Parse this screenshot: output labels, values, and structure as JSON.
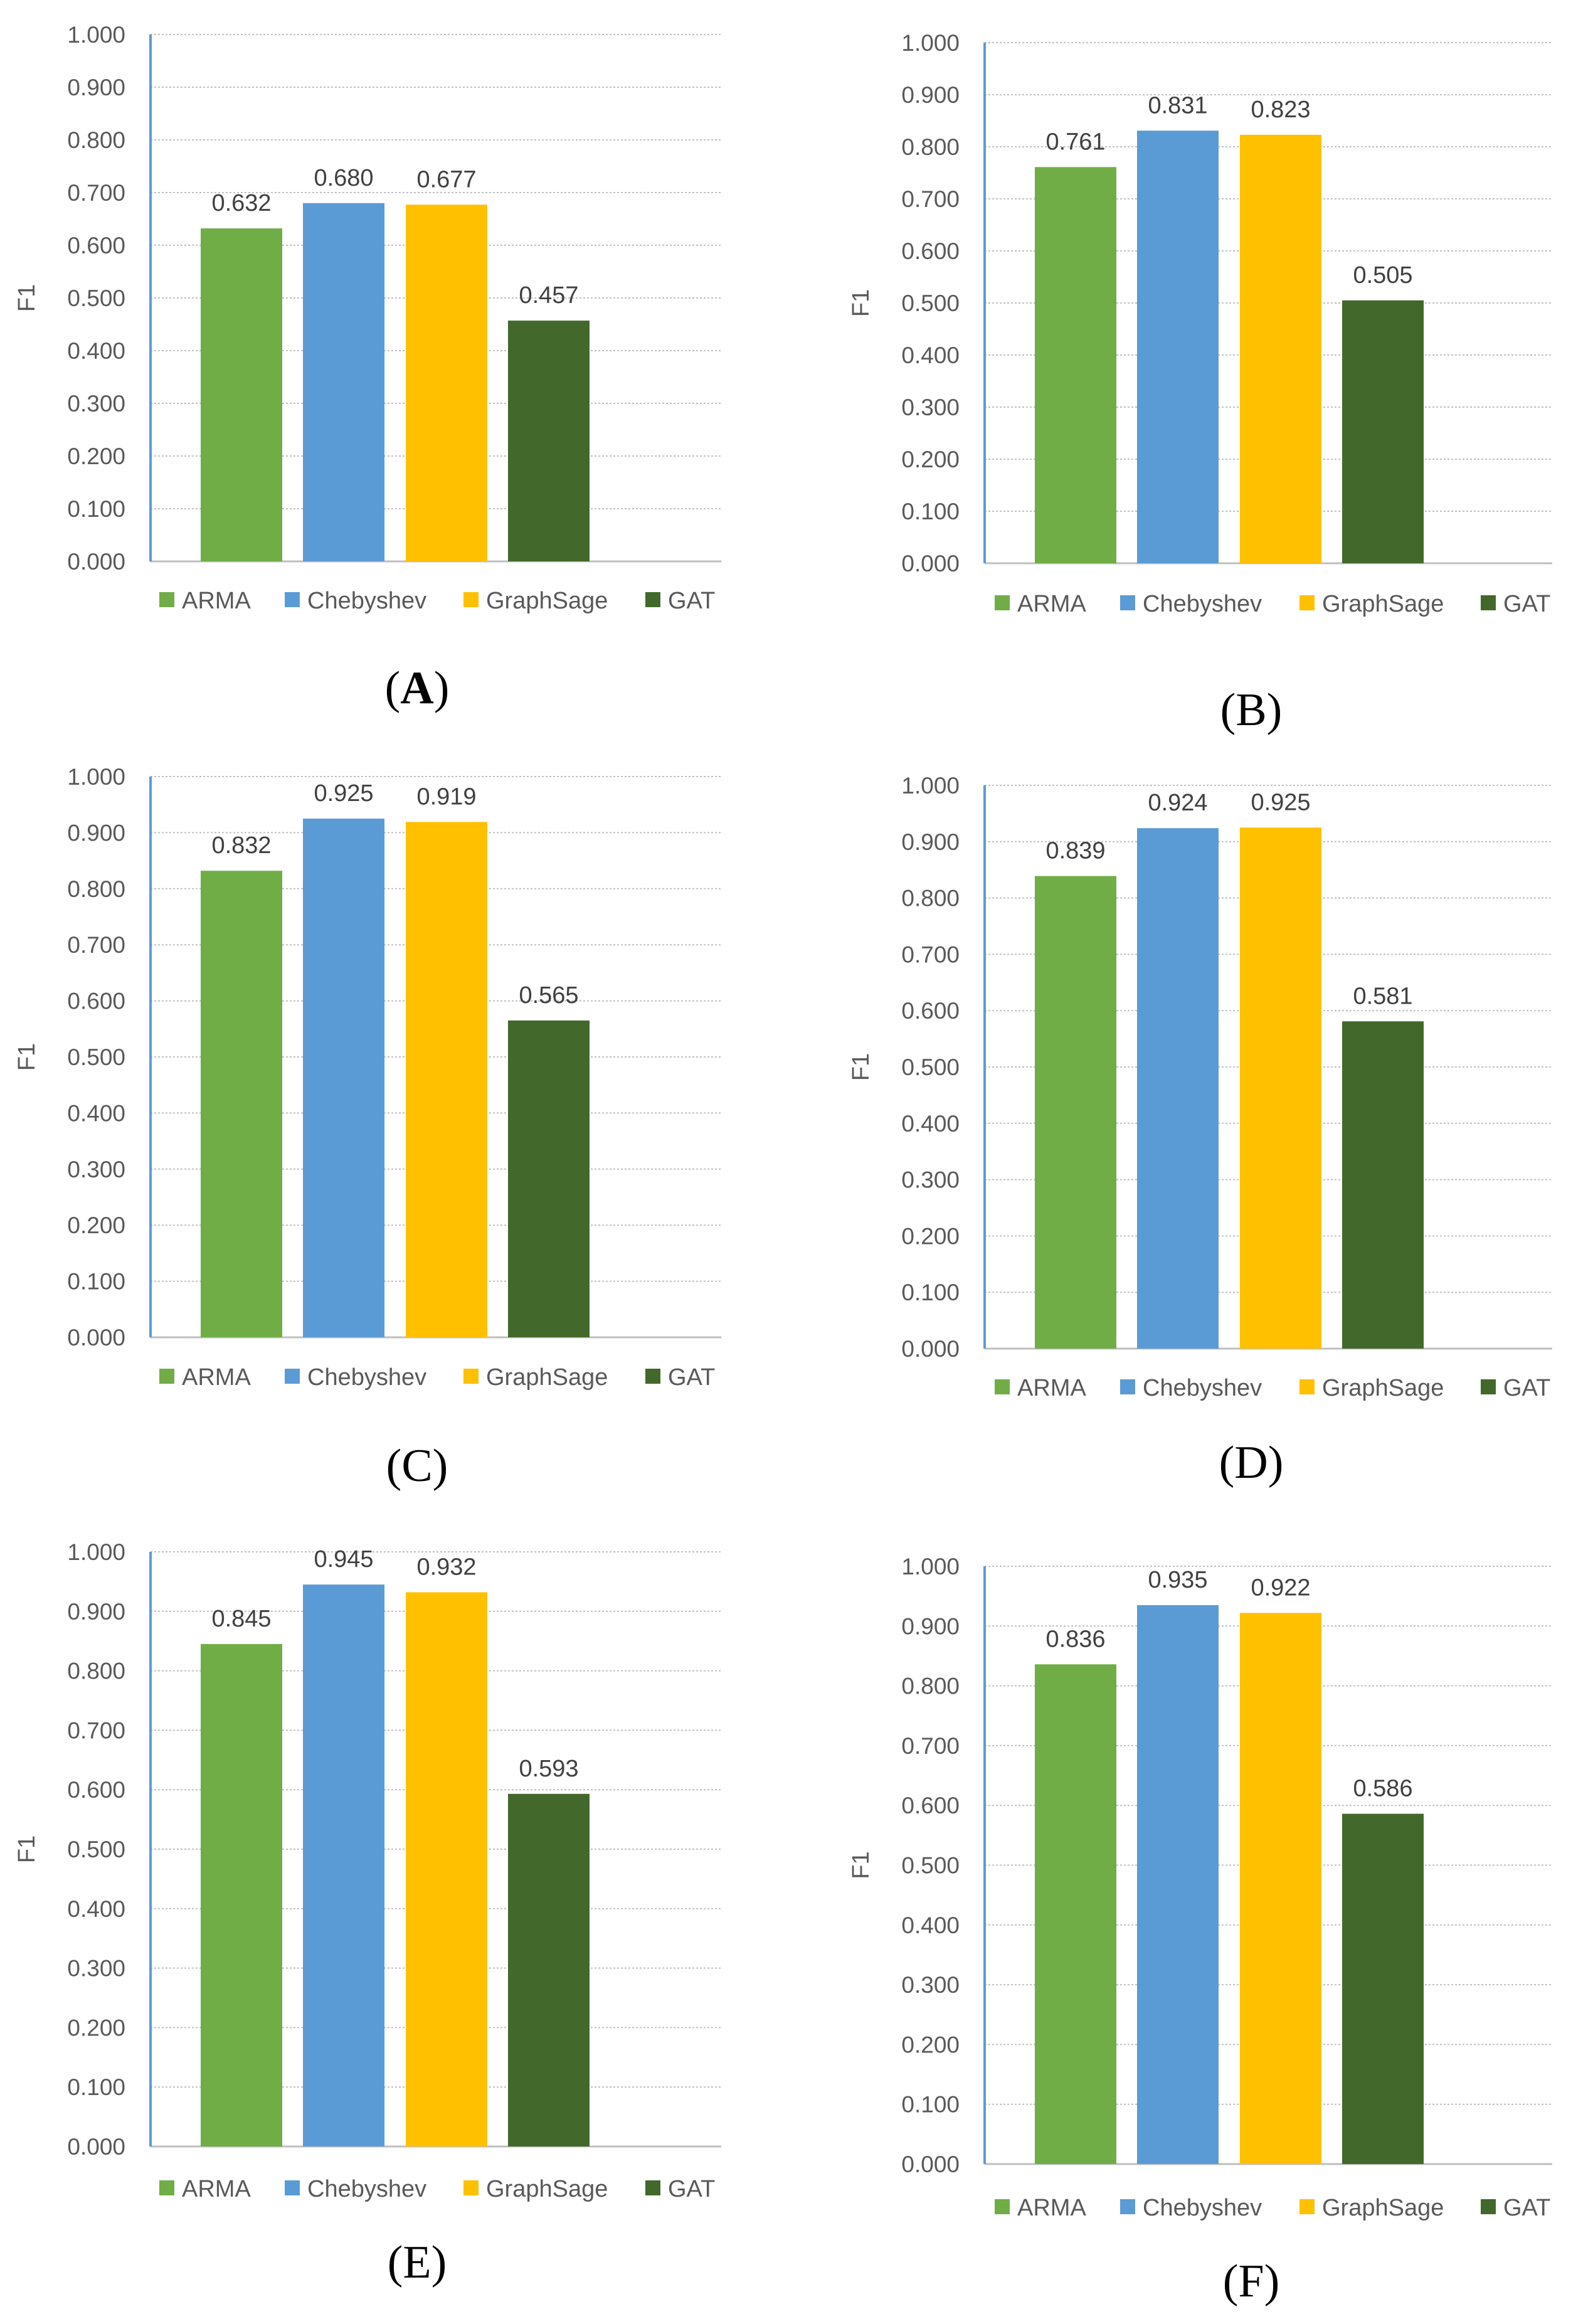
{
  "colors": {
    "ARMA": "#70ad47",
    "Chebyshev": "#5b9bd5",
    "GraphSage": "#ffc000",
    "GAT": "#43682b",
    "grid": "#c0c0c0",
    "axis": "#5b9bd5"
  },
  "chart_data": [
    {
      "panel": "A",
      "type": "bar",
      "ylabel": "F1",
      "ylim": [
        0,
        1
      ],
      "yticks": [
        "0.000",
        "0.100",
        "0.200",
        "0.300",
        "0.400",
        "0.500",
        "0.600",
        "0.700",
        "0.800",
        "0.900",
        "1.000"
      ],
      "categories": [
        "ARMA",
        "Chebyshev",
        "GraphSage",
        "GAT"
      ],
      "values": [
        0.632,
        0.68,
        0.677,
        0.457
      ],
      "labels": [
        "0.632",
        "0.680",
        "0.677",
        "0.457"
      ],
      "legend": "bottom"
    },
    {
      "panel": "B",
      "type": "bar",
      "ylabel": "F1",
      "ylim": [
        0,
        1
      ],
      "yticks": [
        "0.000",
        "0.100",
        "0.200",
        "0.300",
        "0.400",
        "0.500",
        "0.600",
        "0.700",
        "0.800",
        "0.900",
        "1.000"
      ],
      "categories": [
        "ARMA",
        "Chebyshev",
        "GraphSage",
        "GAT"
      ],
      "values": [
        0.761,
        0.831,
        0.823,
        0.505
      ],
      "labels": [
        "0.761",
        "0.831",
        "0.823",
        "0.505"
      ],
      "legend": "bottom"
    },
    {
      "panel": "C",
      "type": "bar",
      "ylabel": "F1",
      "ylim": [
        0,
        1
      ],
      "yticks": [
        "0.000",
        "0.100",
        "0.200",
        "0.300",
        "0.400",
        "0.500",
        "0.600",
        "0.700",
        "0.800",
        "0.900",
        "1.000"
      ],
      "categories": [
        "ARMA",
        "Chebyshev",
        "GraphSage",
        "GAT"
      ],
      "values": [
        0.832,
        0.925,
        0.919,
        0.565
      ],
      "labels": [
        "0.832",
        "0.925",
        "0.919",
        "0.565"
      ],
      "legend": "bottom"
    },
    {
      "panel": "D",
      "type": "bar",
      "ylabel": "F1",
      "ylim": [
        0,
        1
      ],
      "yticks": [
        "0.000",
        "0.100",
        "0.200",
        "0.300",
        "0.400",
        "0.500",
        "0.600",
        "0.700",
        "0.800",
        "0.900",
        "1.000"
      ],
      "categories": [
        "ARMA",
        "Chebyshev",
        "GraphSage",
        "GAT"
      ],
      "values": [
        0.839,
        0.924,
        0.925,
        0.581
      ],
      "labels": [
        "0.839",
        "0.924",
        "0.925",
        "0.581"
      ],
      "legend": "bottom"
    },
    {
      "panel": "E",
      "type": "bar",
      "ylabel": "F1",
      "ylim": [
        0,
        1
      ],
      "yticks": [
        "0.000",
        "0.100",
        "0.200",
        "0.300",
        "0.400",
        "0.500",
        "0.600",
        "0.700",
        "0.800",
        "0.900",
        "1.000"
      ],
      "categories": [
        "ARMA",
        "Chebyshev",
        "GraphSage",
        "GAT"
      ],
      "values": [
        0.845,
        0.945,
        0.932,
        0.593
      ],
      "labels": [
        "0.845",
        "0.945",
        "0.932",
        "0.593"
      ],
      "legend": "bottom"
    },
    {
      "panel": "F",
      "type": "bar",
      "ylabel": "F1",
      "ylim": [
        0,
        1
      ],
      "yticks": [
        "0.000",
        "0.100",
        "0.200",
        "0.300",
        "0.400",
        "0.500",
        "0.600",
        "0.700",
        "0.800",
        "0.900",
        "1.000"
      ],
      "categories": [
        "ARMA",
        "Chebyshev",
        "GraphSage",
        "GAT"
      ],
      "values": [
        0.836,
        0.935,
        0.922,
        0.586
      ],
      "labels": [
        "0.836",
        "0.935",
        "0.922",
        "0.586"
      ],
      "legend": "bottom"
    }
  ],
  "captions": [
    {
      "open": "(",
      "letter": "A",
      "close": ")"
    },
    {
      "open": "(",
      "letter": "B",
      "close": ")"
    },
    {
      "open": "(",
      "letter": "C",
      "close": ")"
    },
    {
      "open": "(",
      "letter": "D",
      "close": ")"
    },
    {
      "open": "(",
      "letter": "E",
      "close": ")"
    },
    {
      "open": "(",
      "letter": "F",
      "close": ")"
    }
  ]
}
